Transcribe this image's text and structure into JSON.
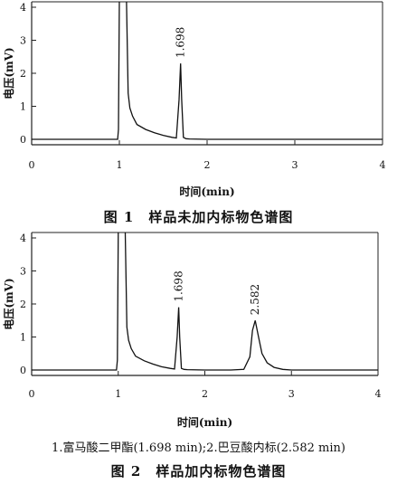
{
  "chart_data": [
    {
      "type": "line",
      "title": "图 1　样品未加内标物色谱图",
      "xlabel": "时间(min)",
      "ylabel": "电压(mV)",
      "xlim": [
        0,
        4
      ],
      "ylim": [
        0,
        4
      ],
      "x_ticks": [
        "0",
        "1",
        "2",
        "3",
        "4"
      ],
      "y_ticks": [
        "0",
        "1",
        "2",
        "3",
        "4"
      ],
      "peaks": [
        {
          "rt": 1.05,
          "height": 4.3,
          "label": ""
        },
        {
          "rt": 1.698,
          "height": 2.3,
          "label": "1.698"
        }
      ],
      "series": [
        {
          "x": [
            0,
            0.98,
            0.99,
            1.0,
            1.01,
            1.02,
            1.04,
            1.06,
            1.08,
            1.1,
            1.12,
            1.15,
            1.2,
            1.3,
            1.4,
            1.5,
            1.6,
            1.65,
            1.68,
            1.698,
            1.71,
            1.73,
            1.76,
            1.8,
            2.0,
            2.5,
            3.0,
            3.5,
            4.0
          ],
          "y": [
            0,
            0,
            0.3,
            4.3,
            4.3,
            4.3,
            4.3,
            4.3,
            4.3,
            1.4,
            0.95,
            0.7,
            0.45,
            0.3,
            0.2,
            0.12,
            0.06,
            0.04,
            1.2,
            2.3,
            1.2,
            0.06,
            0.02,
            0.01,
            0.0,
            0.0,
            0.0,
            0.0,
            0.0
          ]
        }
      ]
    },
    {
      "type": "line",
      "title": "图 2　样品加内标物色谱图",
      "xlabel": "时间(min)",
      "ylabel": "电压(mV)",
      "xlim": [
        0,
        4
      ],
      "ylim": [
        0,
        4
      ],
      "x_ticks": [
        "0",
        "1",
        "2",
        "3",
        "4"
      ],
      "y_ticks": [
        "0",
        "1",
        "2",
        "3",
        "4"
      ],
      "peaks": [
        {
          "rt": 1.05,
          "height": 4.3,
          "label": ""
        },
        {
          "rt": 1.698,
          "height": 1.9,
          "label": "1.698"
        },
        {
          "rt": 2.582,
          "height": 1.5,
          "label": "2.582"
        }
      ],
      "series": [
        {
          "x": [
            0,
            0.98,
            0.99,
            1.0,
            1.01,
            1.02,
            1.04,
            1.06,
            1.08,
            1.1,
            1.12,
            1.15,
            1.2,
            1.3,
            1.4,
            1.5,
            1.6,
            1.65,
            1.68,
            1.698,
            1.71,
            1.73,
            1.76,
            1.8,
            2.0,
            2.3,
            2.45,
            2.52,
            2.55,
            2.582,
            2.62,
            2.66,
            2.72,
            2.8,
            2.9,
            3.0,
            3.5,
            4.0
          ],
          "y": [
            0,
            0,
            0.3,
            4.3,
            4.3,
            4.3,
            4.3,
            4.3,
            4.3,
            1.3,
            0.9,
            0.65,
            0.42,
            0.28,
            0.18,
            0.1,
            0.05,
            0.03,
            1.0,
            1.9,
            1.0,
            0.05,
            0.02,
            0.01,
            0.0,
            0.0,
            0.02,
            0.4,
            1.2,
            1.5,
            1.0,
            0.5,
            0.22,
            0.08,
            0.02,
            0.0,
            0.0,
            0.0
          ]
        }
      ]
    }
  ],
  "captions": {
    "fig1": "图 1　样品未加内标物色谱图",
    "fig2_legend": "1.富马酸二甲酯(1.698 min);2.巴豆酸内标(2.582 min)",
    "fig2": "图 2　样品加内标物色谱图"
  }
}
